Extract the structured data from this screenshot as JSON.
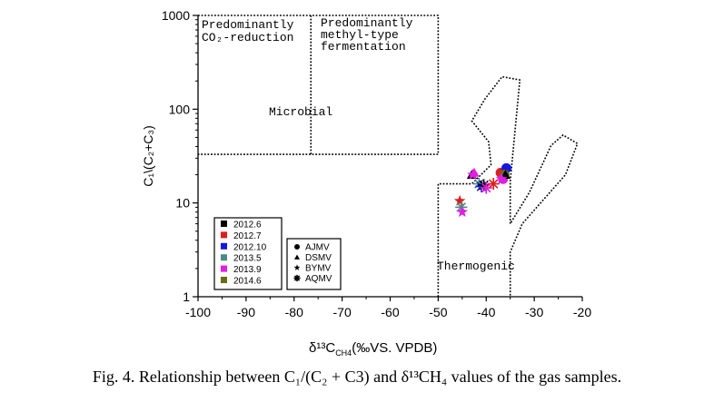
{
  "chart_data": {
    "type": "scatter",
    "xlabel": "δ¹³C",
    "xlabel_sub": "CH4",
    "xlabel_suffix": "(‰VS. VPDB)",
    "ylabel": "C₁\\(C₂+C₃)",
    "y_scale": "log",
    "xlim": [
      -100,
      -20
    ],
    "ylim": [
      1,
      1000
    ],
    "x_ticks": [
      -100,
      -90,
      -80,
      -70,
      -60,
      -50,
      -40,
      -30,
      -20
    ],
    "x_tick_labels": [
      "-100",
      "-90",
      "-80",
      "-70",
      "-60",
      "-50",
      "-40",
      "-30",
      "-20"
    ],
    "y_ticks": [
      1,
      10,
      100,
      1000
    ],
    "y_tick_labels": [
      "1",
      "10",
      "100",
      "1000"
    ],
    "grid": false,
    "regions": {
      "co2_reduction": "Predominantly CO₂-reduction",
      "methyl_fermentation": [
        "Predominantly",
        "methyl-type",
        "fermentation"
      ],
      "microbial": "Microbial",
      "thermogenic": "Thermogenic"
    },
    "legend_colors": {
      "title": "",
      "placement": "bottom-left",
      "entries": [
        {
          "label": "2012.6",
          "color": "#000000"
        },
        {
          "label": "2012.7",
          "color": "#e11b1b"
        },
        {
          "label": "2012.10",
          "color": "#1616e0"
        },
        {
          "label": "2013.5",
          "color": "#4e8a86"
        },
        {
          "label": "2013.9",
          "color": "#e21ee2"
        },
        {
          "label": "2014.6",
          "color": "#6b6b14"
        }
      ]
    },
    "legend_markers": {
      "entries": [
        {
          "label": "AJMV",
          "marker": "circle"
        },
        {
          "label": "DSMV",
          "marker": "triangle"
        },
        {
          "label": "BYMV",
          "marker": "star"
        },
        {
          "label": "AQMV",
          "marker": "asterisk"
        }
      ]
    },
    "points": [
      {
        "x": -43,
        "y": 20,
        "site": "DSMV",
        "color": "#000000"
      },
      {
        "x": -42.5,
        "y": 21,
        "site": "DSMV",
        "color": "#e21ee2"
      },
      {
        "x": -42.8,
        "y": 20,
        "site": "BYMV",
        "color": "#e21ee2"
      },
      {
        "x": -41.5,
        "y": 16,
        "site": "AQMV",
        "color": "#4e8a86"
      },
      {
        "x": -41,
        "y": 15,
        "site": "AQMV",
        "color": "#1616e0"
      },
      {
        "x": -40.5,
        "y": 15.5,
        "site": "AQMV",
        "color": "#000000"
      },
      {
        "x": -40,
        "y": 14.5,
        "site": "AQMV",
        "color": "#e21ee2"
      },
      {
        "x": -38.5,
        "y": 16,
        "site": "AQMV",
        "color": "#e11b1b"
      },
      {
        "x": -37,
        "y": 21,
        "site": "AJMV",
        "color": "#e11b1b"
      },
      {
        "x": -35.8,
        "y": 23.5,
        "site": "AJMV",
        "color": "#1616e0"
      },
      {
        "x": -36.2,
        "y": 20,
        "site": "AJMV",
        "color": "#6b6b14"
      },
      {
        "x": -36.5,
        "y": 18,
        "site": "AJMV",
        "color": "#e21ee2"
      },
      {
        "x": -36,
        "y": 20,
        "site": "DSMV",
        "color": "#000000"
      },
      {
        "x": -36.8,
        "y": 18,
        "site": "BYMV",
        "color": "#e21ee2"
      },
      {
        "x": -45.5,
        "y": 10.5,
        "site": "BYMV",
        "color": "#e11b1b"
      },
      {
        "x": -45.2,
        "y": 9,
        "site": "AQMV",
        "color": "#4e8a86"
      },
      {
        "x": -45,
        "y": 8,
        "site": "BYMV",
        "color": "#e21ee2"
      }
    ]
  },
  "caption": "Fig. 4. Relationship between C₁/(C₂ + C3) and δ¹³CH₄ values of the gas samples."
}
